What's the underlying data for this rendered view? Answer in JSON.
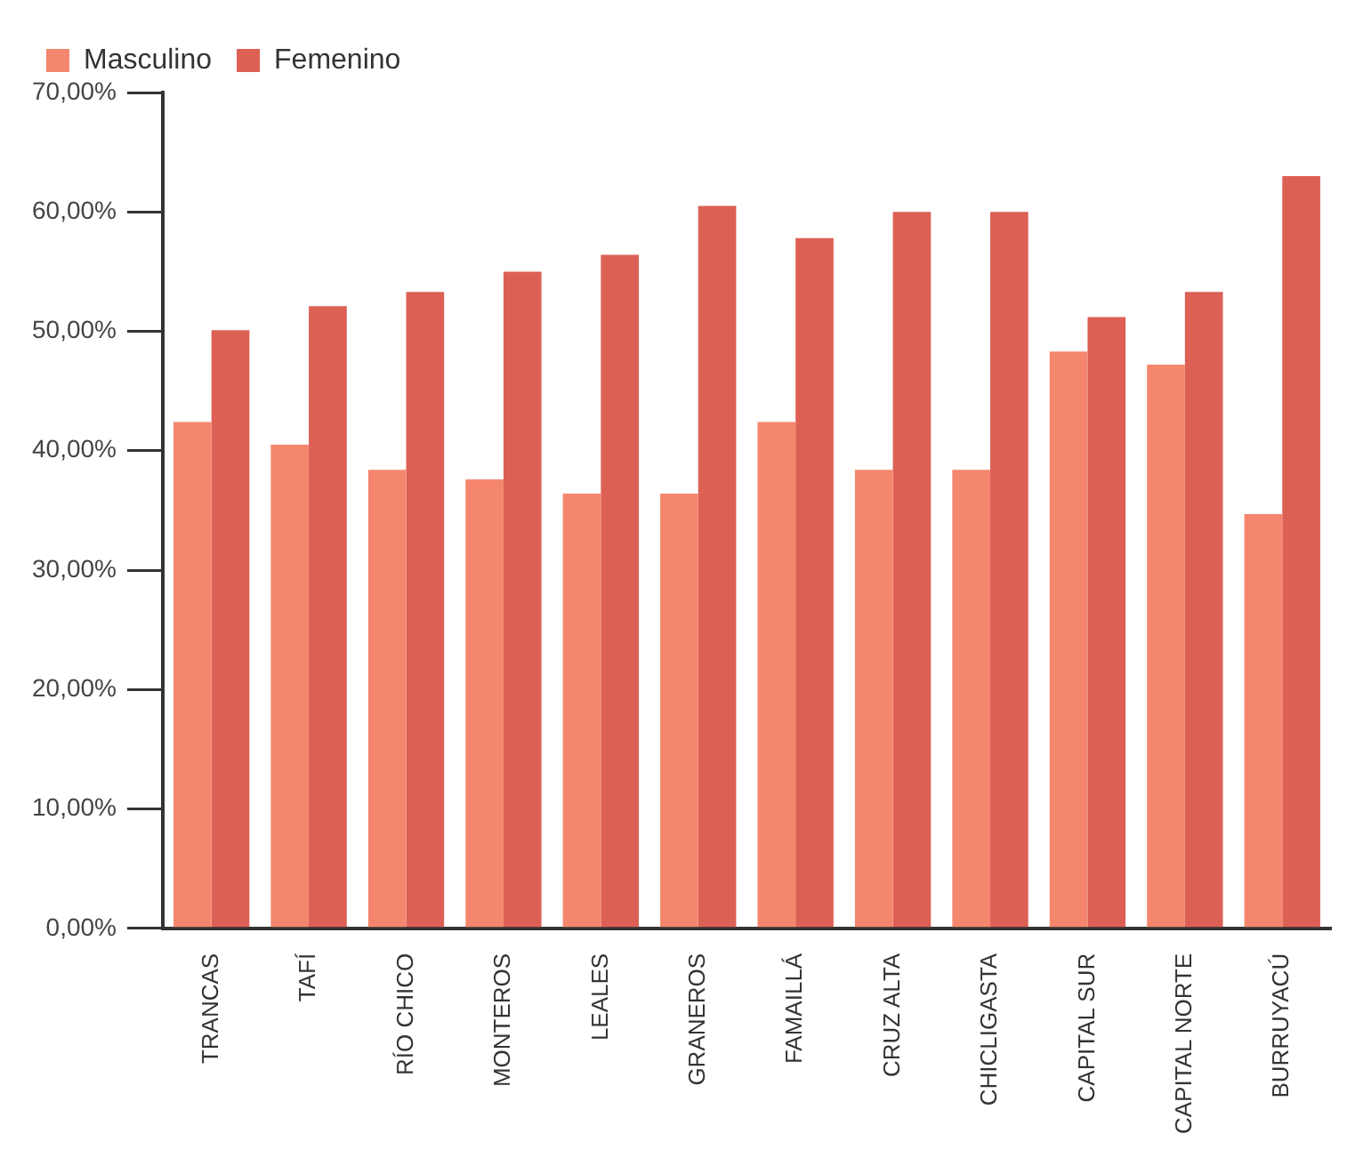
{
  "chart_data": {
    "type": "bar",
    "categories": [
      "TRANCAS",
      "TAFÍ",
      "RÍO CHICO",
      "MONTEROS",
      "LEALES",
      "GRANEROS",
      "FAMAILLÁ",
      "CRUZ ALTA",
      "CHICLIGASTA",
      "CAPITAL SUR",
      "CAPITAL NORTE",
      "BURRUYACÚ"
    ],
    "series": [
      {
        "name": "Masculino",
        "color": "#f4866e",
        "values": [
          42.4,
          40.5,
          38.4,
          37.6,
          36.4,
          36.4,
          42.4,
          38.4,
          38.4,
          48.3,
          47.2,
          34.7
        ]
      },
      {
        "name": "Femenino",
        "color": "#dd6055",
        "values": [
          50.1,
          52.1,
          53.3,
          55.0,
          56.4,
          60.5,
          57.8,
          60.0,
          60.0,
          51.2,
          53.3,
          63.0
        ]
      }
    ],
    "ylim": [
      0,
      70
    ],
    "yticks": [
      {
        "value": 0,
        "label": "0,00%"
      },
      {
        "value": 10,
        "label": "10,00%"
      },
      {
        "value": 20,
        "label": "20,00%"
      },
      {
        "value": 30,
        "label": "30,00%"
      },
      {
        "value": 40,
        "label": "40,00%"
      },
      {
        "value": 50,
        "label": "50,00%"
      },
      {
        "value": 60,
        "label": "60,00%"
      },
      {
        "value": 70,
        "label": "70,00%"
      }
    ],
    "grid": false,
    "legend": "top left"
  }
}
